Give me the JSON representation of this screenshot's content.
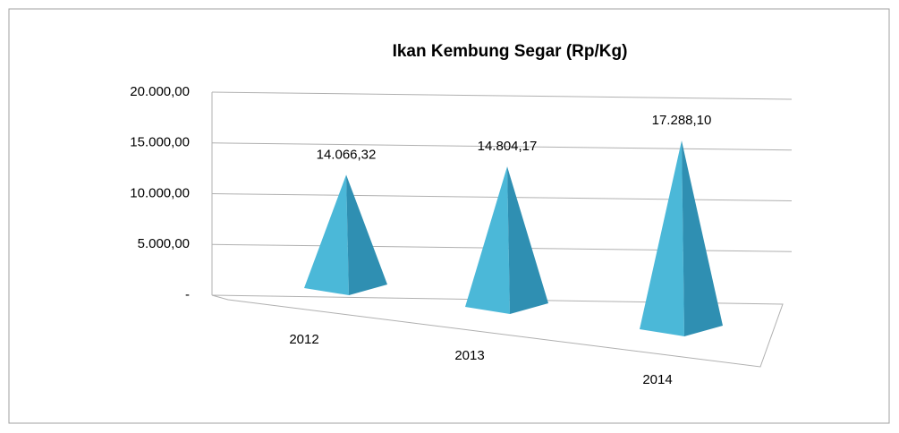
{
  "chart_data": {
    "type": "pyramid",
    "title": "Ikan Kembung Segar (Rp/Kg)",
    "categories": [
      "2012",
      "2013",
      "2014"
    ],
    "values": [
      14066.32,
      14804.17,
      17288.1
    ],
    "value_labels": [
      "14.066,32",
      "14.804,17",
      "17.288,10"
    ],
    "color": "#4bb8d8",
    "ylim": [
      0,
      20000
    ],
    "yticks": [
      {
        "value": 0,
        "label": "-"
      },
      {
        "value": 5000,
        "label": "5.000,00"
      },
      {
        "value": 10000,
        "label": "10.000,00"
      },
      {
        "value": 15000,
        "label": "15.000,00"
      },
      {
        "value": 20000,
        "label": "20.000,00"
      }
    ],
    "grid": true
  }
}
